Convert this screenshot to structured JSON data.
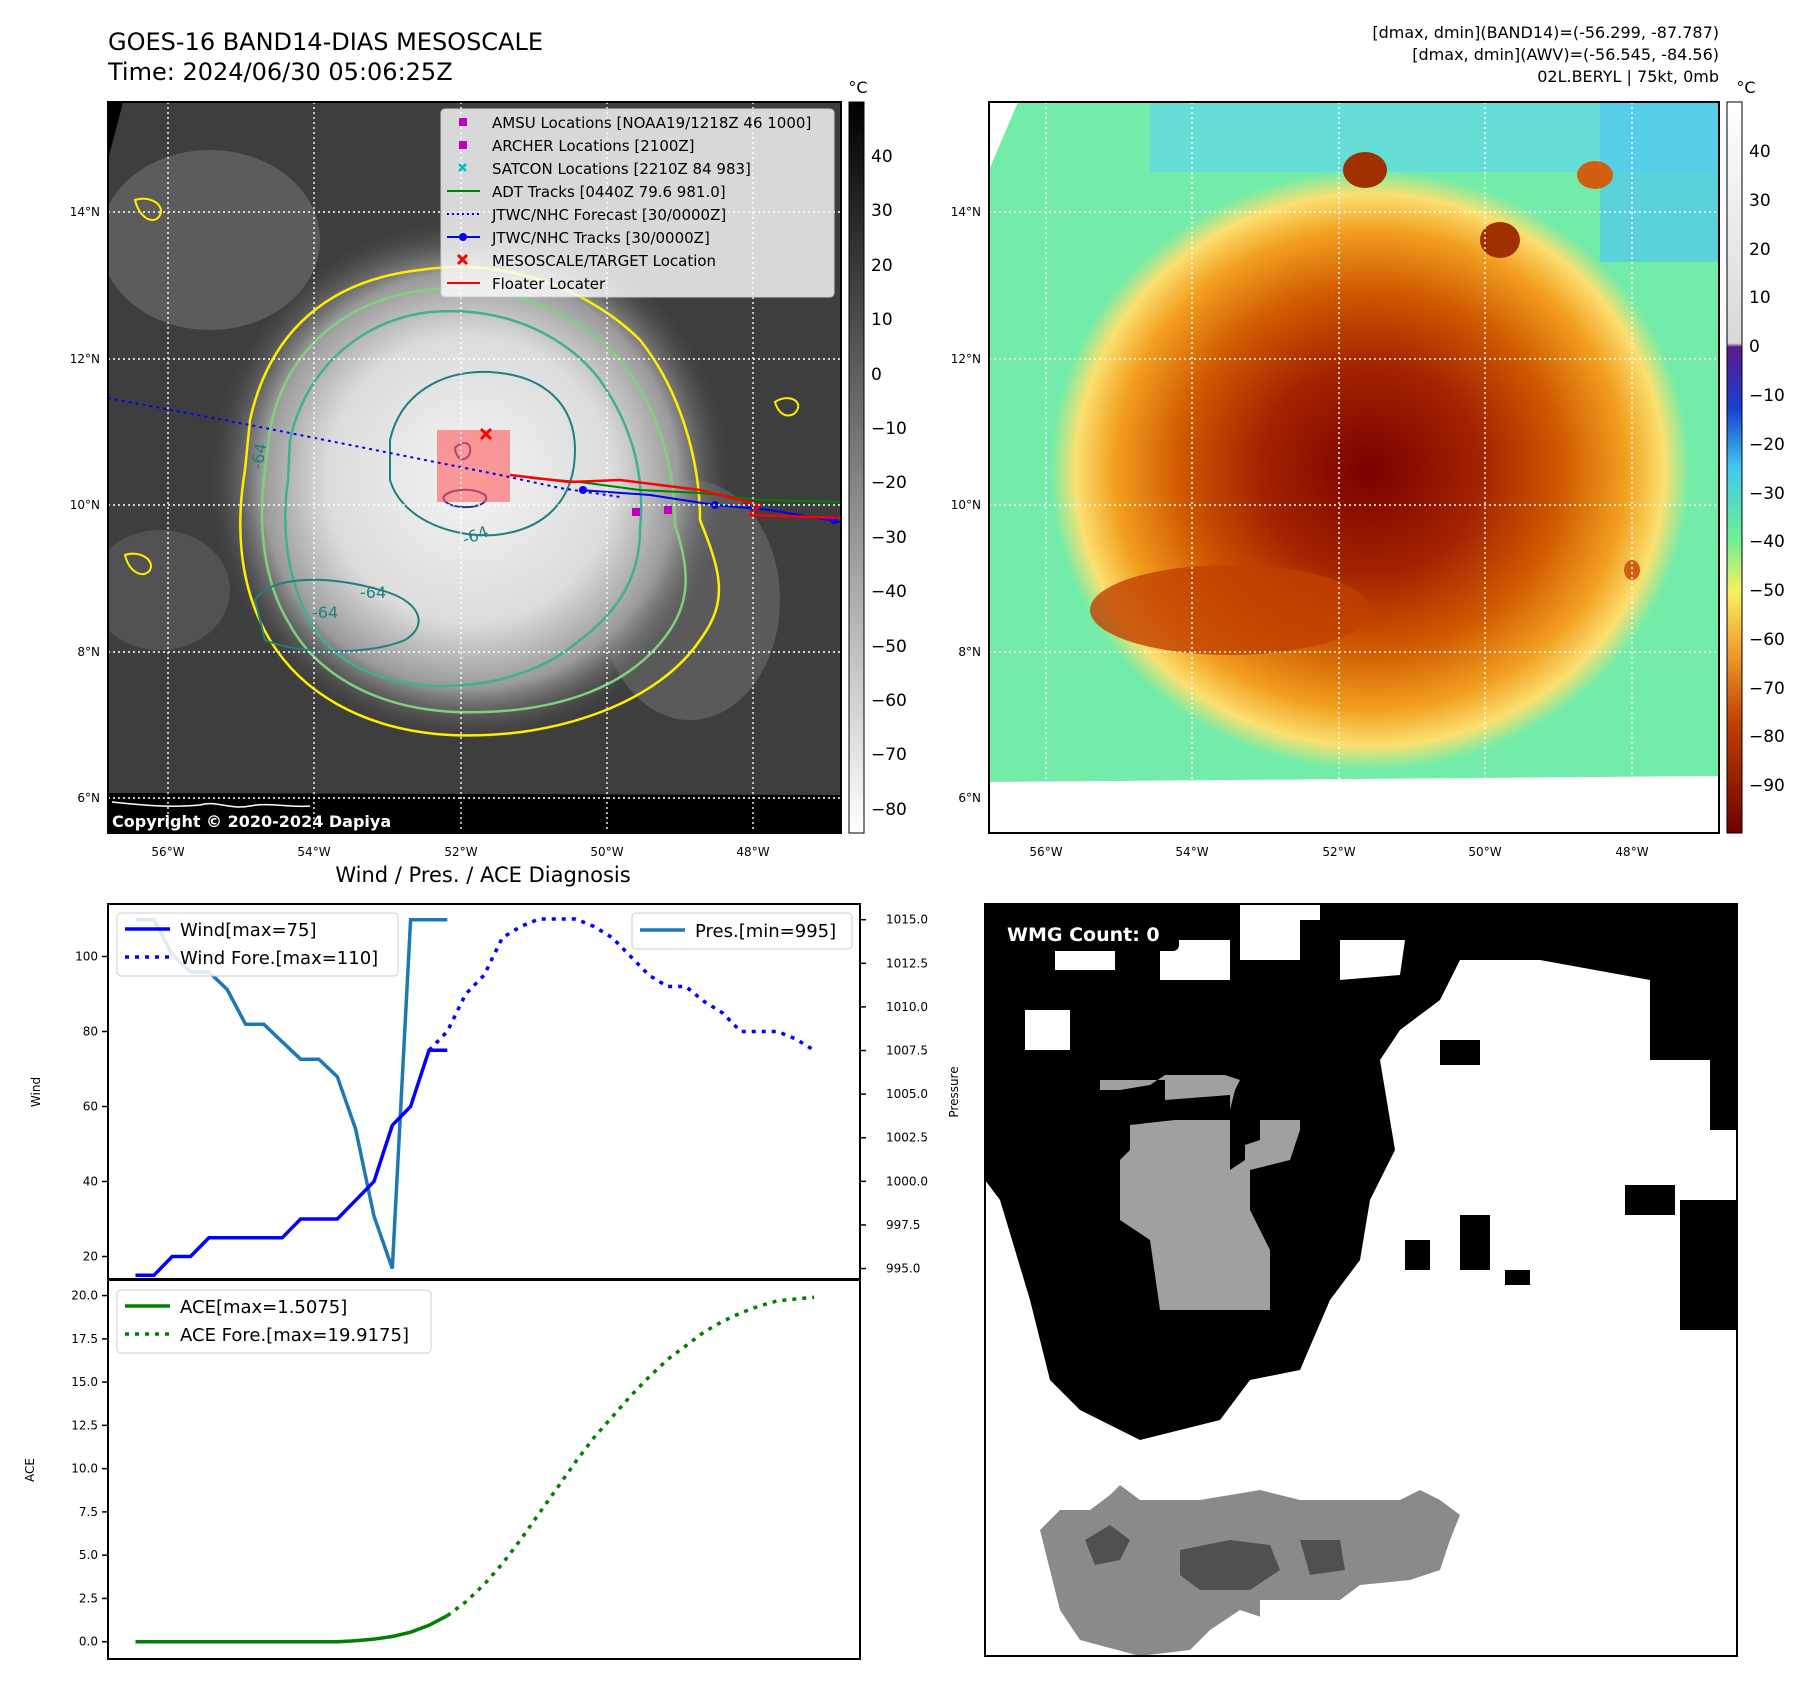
{
  "header": {
    "title_line1": "GOES-16 BAND14-DIAS MESOSCALE",
    "title_line2": "Time: 2024/06/30 05:06:25Z",
    "info_line1": "[dmax, dmin](BAND14)=(-56.299, -87.787)",
    "info_line2": "[dmax, dmin](AWV)=(-56.545, -84.56)",
    "info_line3": "02L.BERYL | 75kt, 0mb"
  },
  "map": {
    "lat_labels": [
      "14°N",
      "12°N",
      "10°N",
      "8°N",
      "6°N"
    ],
    "lon_labels": [
      "56°W",
      "54°W",
      "52°W",
      "50°W",
      "48°W"
    ],
    "copyright": "Copyright © 2020-2024 Dapiya",
    "contour_labels": [
      "-64",
      "-64",
      "-64",
      "-64"
    ]
  },
  "legend": {
    "items": [
      {
        "label": "AMSU Locations [NOAA19/1218Z 46 1000]",
        "color": "#c000c0",
        "marker": "square"
      },
      {
        "label": "ARCHER Locations [2100Z]",
        "color": "#c000c0",
        "marker": "square"
      },
      {
        "label": "SATCON Locations [2210Z 84 983]",
        "color": "#00bfbf",
        "marker": "x"
      },
      {
        "label": "ADT Tracks [0440Z 79.6 981.0]",
        "color": "#008000",
        "marker": "line"
      },
      {
        "label": "JTWC/NHC Forecast [30/0000Z]",
        "color": "#0000ff",
        "marker": "dotted"
      },
      {
        "label": "JTWC/NHC Tracks [30/0000Z]",
        "color": "#0000ff",
        "marker": "line-dot"
      },
      {
        "label": "MESOSCALE/TARGET Location",
        "color": "#ff0000",
        "marker": "x"
      },
      {
        "label": "Floater Locater",
        "color": "#ff0000",
        "marker": "line"
      }
    ]
  },
  "colorbar_left": {
    "unit": "°C",
    "ticks": [
      "40",
      "30",
      "20",
      "10",
      "0",
      "−10",
      "−20",
      "−30",
      "−40",
      "−50",
      "−60",
      "−70",
      "−80"
    ]
  },
  "colorbar_right": {
    "unit": "°C",
    "ticks": [
      "40",
      "30",
      "20",
      "10",
      "0",
      "−10",
      "−20",
      "−30",
      "−40",
      "−50",
      "−60",
      "−70",
      "−80",
      "−90"
    ]
  },
  "diagnosis": {
    "title": "Wind / Pres. / ACE Diagnosis",
    "wind_ylabel": "Wind",
    "pres_ylabel": "Pressure",
    "ace_ylabel": "ACE",
    "legend_wind": "Wind[max=75]",
    "legend_wind_fore": "Wind Fore.[max=110]",
    "legend_pres": "Pres.[min=995]",
    "legend_ace": "ACE[max=1.5075]",
    "legend_ace_fore": "ACE Fore.[max=19.9175]",
    "wind_ticks": [
      "20",
      "40",
      "60",
      "80",
      "100"
    ],
    "pres_ticks": [
      "995.0",
      "997.5",
      "1000.0",
      "1002.5",
      "1005.0",
      "1007.5",
      "1010.0",
      "1012.5",
      "1015.0"
    ],
    "ace_ticks": [
      "0.0",
      "2.5",
      "5.0",
      "7.5",
      "10.0",
      "12.5",
      "15.0",
      "17.5",
      "20.0"
    ]
  },
  "wmg": {
    "label": "WMG Count: 0"
  },
  "chart_data": [
    {
      "type": "line",
      "title": "Wind / Pres. / ACE Diagnosis",
      "ylabel": "Wind",
      "ylim": [
        14,
        114
      ],
      "series": [
        {
          "name": "Wind[max=75]",
          "style": "solid",
          "color": "#0000ff",
          "x": [
            0,
            1,
            2,
            3,
            4,
            5,
            6,
            7,
            8,
            9,
            10,
            11,
            12,
            13,
            14,
            15,
            16,
            17
          ],
          "values": [
            15,
            15,
            20,
            20,
            25,
            25,
            25,
            25,
            25,
            30,
            30,
            30,
            35,
            40,
            55,
            60,
            75,
            75
          ]
        },
        {
          "name": "Wind Fore.[max=110]",
          "style": "dotted",
          "color": "#0000ff",
          "x": [
            16,
            17,
            18,
            19,
            20,
            21,
            22,
            23,
            24,
            25,
            26,
            27,
            28,
            29,
            30,
            31,
            32,
            33,
            34,
            35,
            36,
            37
          ],
          "values": [
            75,
            80,
            90,
            95,
            105,
            108,
            110,
            110,
            110,
            108,
            105,
            100,
            95,
            92,
            92,
            88,
            85,
            80,
            80,
            80,
            78,
            75
          ]
        }
      ]
    },
    {
      "type": "line",
      "ylabel": "Pressure",
      "ylim": [
        994.4,
        1015.9
      ],
      "series": [
        {
          "name": "Pres.[min=995]",
          "style": "solid",
          "color": "#1f77b4",
          "x": [
            0,
            1,
            2,
            3,
            4,
            5,
            6,
            7,
            8,
            9,
            10,
            11,
            12,
            13,
            14,
            15,
            16,
            17
          ],
          "values": [
            1015,
            1015,
            1013,
            1012,
            1012,
            1011,
            1009,
            1009,
            1008,
            1007,
            1007,
            1006,
            1003,
            998,
            995,
            1015,
            1015,
            1015
          ]
        }
      ]
    },
    {
      "type": "line",
      "ylabel": "ACE",
      "ylim": [
        -1.0,
        20.9
      ],
      "series": [
        {
          "name": "ACE[max=1.5075]",
          "style": "solid",
          "color": "#008000",
          "x": [
            0,
            2,
            4,
            6,
            8,
            10,
            11,
            12,
            13,
            14,
            15,
            16,
            17
          ],
          "values": [
            0,
            0,
            0,
            0,
            0,
            0,
            0,
            0.05,
            0.15,
            0.3,
            0.55,
            0.95,
            1.5
          ]
        },
        {
          "name": "ACE Fore.[max=19.9175]",
          "style": "dotted",
          "color": "#008000",
          "x": [
            17,
            18,
            19,
            20,
            21,
            22,
            23,
            24,
            25,
            26,
            27,
            28,
            29,
            30,
            31,
            32,
            33,
            34,
            35,
            36,
            37
          ],
          "values": [
            1.5,
            2.3,
            3.3,
            4.5,
            5.9,
            7.4,
            8.9,
            10.4,
            11.8,
            13.0,
            14.2,
            15.3,
            16.3,
            17.1,
            17.9,
            18.5,
            19.0,
            19.4,
            19.7,
            19.8,
            19.9
          ]
        }
      ]
    }
  ]
}
